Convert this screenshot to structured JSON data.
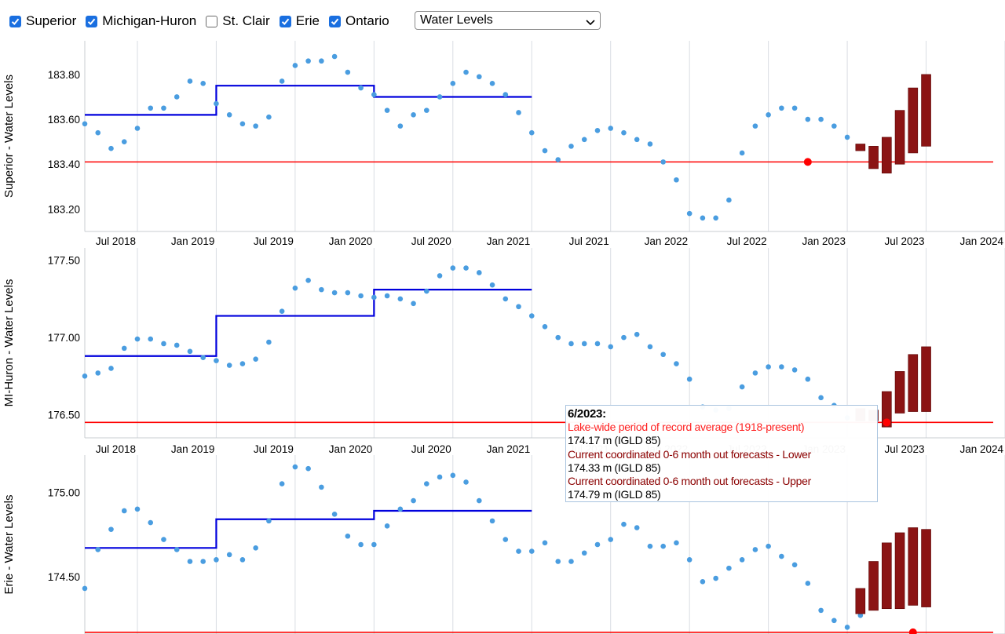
{
  "controls": {
    "checkboxes": [
      {
        "label": "Superior",
        "checked": true
      },
      {
        "label": "Michigan-Huron",
        "checked": true
      },
      {
        "label": "St. Clair",
        "checked": false
      },
      {
        "label": "Erie",
        "checked": true
      },
      {
        "label": "Ontario",
        "checked": true
      }
    ],
    "dataset_select": {
      "value": "Water Levels"
    }
  },
  "colors": {
    "observed": "#4a9de0",
    "average": "#0000dd",
    "record_average": "#ff0000",
    "forecast": "#8b1414",
    "checkbox": "#1a6fe0"
  },
  "tooltip": {
    "title": "6/2023:",
    "lines": [
      {
        "text": "Lake-wide period of record average (1918-present)",
        "style": "red"
      },
      {
        "text": "174.17 m (IGLD 85)",
        "style": "normal"
      },
      {
        "text": "Current coordinated 0-6 month out forecasts - Lower",
        "style": "dark"
      },
      {
        "text": "174.33 m (IGLD 85)",
        "style": "normal"
      },
      {
        "text": "Current coordinated 0-6 month out forecasts - Upper",
        "style": "dark"
      },
      {
        "text": "174.79 m (IGLD 85)",
        "style": "normal"
      }
    ]
  },
  "chart_data": [
    {
      "type": "scatter",
      "ylabel": "Superior - Water Levels",
      "xlim": [
        "2018-03",
        "2024-01"
      ],
      "x_ticks": [
        "Jul 2018",
        "Jan 2019",
        "Jul 2019",
        "Jan 2020",
        "Jul 2020",
        "Jan 2021",
        "Jul 2021",
        "Jan 2022",
        "Jul 2022",
        "Jan 2023",
        "Jul 2023",
        "Jan 2024"
      ],
      "ylim": [
        183.1,
        183.95
      ],
      "y_ticks": [
        "183.20",
        "183.40",
        "183.60",
        "183.80"
      ],
      "grid": "vertical",
      "record_average": 183.41,
      "observed": {
        "start": "2018-03",
        "values": [
          183.58,
          183.54,
          183.47,
          183.5,
          183.56,
          183.65,
          183.65,
          183.7,
          183.77,
          183.76,
          183.67,
          183.62,
          183.58,
          183.57,
          183.61,
          183.77,
          183.84,
          183.86,
          183.86,
          183.88,
          183.81,
          183.74,
          183.71,
          183.64,
          183.57,
          183.62,
          183.64,
          183.7,
          183.76,
          183.81,
          183.79,
          183.76,
          183.71,
          183.63,
          183.54,
          183.46,
          183.42,
          183.48,
          183.51,
          183.55,
          183.56,
          183.54,
          183.51,
          183.49,
          183.41,
          183.33,
          183.18,
          183.16,
          183.16,
          183.24,
          183.45,
          183.57,
          183.62,
          183.65,
          183.65,
          183.6,
          183.6,
          183.57,
          183.52
        ]
      },
      "period_averages": [
        {
          "start": "2018-03",
          "end": "2019-01",
          "value": 183.62
        },
        {
          "start": "2019-01",
          "end": "2020-01",
          "value": 183.75
        },
        {
          "start": "2020-01",
          "end": "2021-01",
          "value": 183.7
        }
      ],
      "highlight": {
        "date": "2022-10",
        "value": 183.41
      },
      "forecast": [
        {
          "date": "2023-02",
          "low": 183.46,
          "high": 183.49
        },
        {
          "date": "2023-03",
          "low": 183.38,
          "high": 183.48
        },
        {
          "date": "2023-04",
          "low": 183.36,
          "high": 183.52
        },
        {
          "date": "2023-05",
          "low": 183.4,
          "high": 183.64
        },
        {
          "date": "2023-06",
          "low": 183.45,
          "high": 183.74
        },
        {
          "date": "2023-07",
          "low": 183.48,
          "high": 183.8
        }
      ]
    },
    {
      "type": "scatter",
      "ylabel": "MI-Huron - Water Levels",
      "xlim": [
        "2018-03",
        "2024-01"
      ],
      "x_ticks": [
        "Jul 2018",
        "Jan 2019",
        "Jul 2019",
        "Jan 2020",
        "Jul 2020",
        "Jan 2021",
        "Jul 2021",
        "Jan 2022",
        "Jul 2022",
        "Jan 2023",
        "Jul 2023",
        "Jan 2024"
      ],
      "ylim": [
        176.35,
        177.58
      ],
      "y_ticks": [
        "176.50",
        "177.00",
        "177.50"
      ],
      "grid": "vertical",
      "record_average": 176.45,
      "observed": {
        "start": "2018-03",
        "values": [
          176.75,
          176.77,
          176.8,
          176.93,
          176.99,
          176.99,
          176.96,
          176.95,
          176.91,
          176.87,
          176.85,
          176.82,
          176.83,
          176.86,
          176.97,
          177.17,
          177.32,
          177.37,
          177.31,
          177.29,
          177.29,
          177.27,
          177.26,
          177.27,
          177.25,
          177.22,
          177.3,
          177.4,
          177.45,
          177.45,
          177.42,
          177.34,
          177.25,
          177.2,
          177.14,
          177.07,
          177.0,
          176.96,
          176.96,
          176.96,
          176.94,
          177.0,
          177.02,
          176.94,
          176.89,
          176.83,
          176.73,
          176.55,
          176.53,
          176.54,
          176.68,
          176.77,
          176.81,
          176.81,
          176.79,
          176.73,
          176.61,
          176.56,
          176.48
        ]
      },
      "period_averages": [
        {
          "start": "2018-03",
          "end": "2019-01",
          "value": 176.88
        },
        {
          "start": "2019-01",
          "end": "2020-01",
          "value": 177.14
        },
        {
          "start": "2020-01",
          "end": "2021-01",
          "value": 177.31
        }
      ],
      "highlight": {
        "date": "2023-04",
        "value": 176.45
      },
      "forecast": [
        {
          "date": "2023-02",
          "low": 176.46,
          "high": 176.54
        },
        {
          "date": "2023-03",
          "low": 176.46,
          "high": 176.53
        },
        {
          "date": "2023-04",
          "low": 176.42,
          "high": 176.65
        },
        {
          "date": "2023-05",
          "low": 176.51,
          "high": 176.78
        },
        {
          "date": "2023-06",
          "low": 176.52,
          "high": 176.89
        },
        {
          "date": "2023-07",
          "low": 176.52,
          "high": 176.94
        }
      ]
    },
    {
      "type": "scatter",
      "ylabel": "Erie - Water Levels",
      "xlim": [
        "2018-03",
        "2024-01"
      ],
      "x_ticks": [],
      "ylim": [
        174.16,
        175.22
      ],
      "y_ticks": [
        "174.50",
        "175.00"
      ],
      "grid": "vertical",
      "record_average": 174.17,
      "observed": {
        "start": "2018-03",
        "values": [
          174.43,
          174.66,
          174.78,
          174.89,
          174.9,
          174.82,
          174.72,
          174.66,
          174.59,
          174.59,
          174.6,
          174.63,
          174.6,
          174.67,
          174.83,
          175.05,
          175.15,
          175.14,
          175.03,
          174.87,
          174.74,
          174.69,
          174.69,
          174.8,
          174.9,
          174.95,
          175.05,
          175.09,
          175.1,
          175.06,
          174.95,
          174.83,
          174.72,
          174.65,
          174.65,
          174.7,
          174.59,
          174.59,
          174.64,
          174.69,
          174.72,
          174.81,
          174.79,
          174.68,
          174.68,
          174.7,
          174.6,
          174.47,
          174.49,
          174.55,
          174.6,
          174.66,
          174.68,
          174.62,
          174.57,
          174.46,
          174.3,
          174.24,
          174.2,
          174.27
        ]
      },
      "period_averages": [
        {
          "start": "2018-03",
          "end": "2019-01",
          "value": 174.67
        },
        {
          "start": "2019-01",
          "end": "2020-01",
          "value": 174.84
        },
        {
          "start": "2020-01",
          "end": "2021-01",
          "value": 174.89
        }
      ],
      "highlight": {
        "date": "2023-06",
        "value": 174.17
      },
      "forecast": [
        {
          "date": "2023-02",
          "low": 174.28,
          "high": 174.43
        },
        {
          "date": "2023-03",
          "low": 174.3,
          "high": 174.59
        },
        {
          "date": "2023-04",
          "low": 174.31,
          "high": 174.7
        },
        {
          "date": "2023-05",
          "low": 174.31,
          "high": 174.76
        },
        {
          "date": "2023-06",
          "low": 174.33,
          "high": 174.79
        },
        {
          "date": "2023-07",
          "low": 174.32,
          "high": 174.78
        }
      ]
    }
  ]
}
